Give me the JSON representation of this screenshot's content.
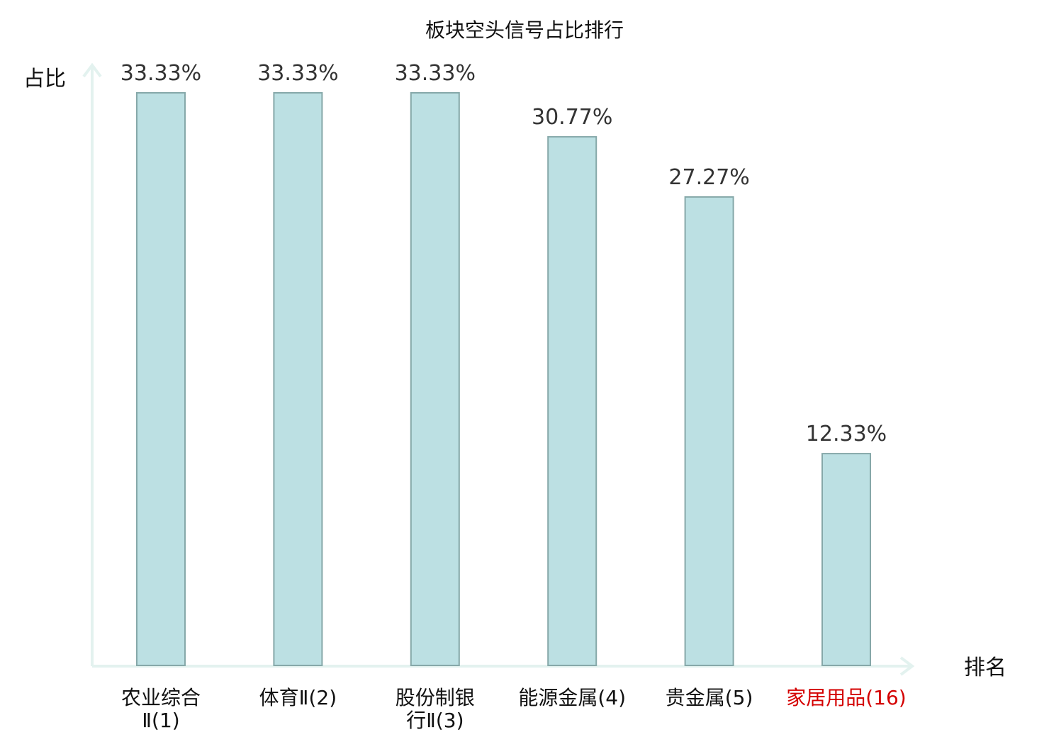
{
  "chart_data": {
    "type": "bar",
    "title": "板块空头信号占比排行",
    "ylabel": "占比",
    "xlabel": "排名",
    "categories": [
      [
        "农业综合",
        "Ⅱ(1)"
      ],
      [
        "体育Ⅱ(2)"
      ],
      [
        "股份制银",
        "行Ⅱ(3)"
      ],
      [
        "能源金属(4)"
      ],
      [
        "贵金属(5)"
      ],
      [
        "家居用品(16)"
      ]
    ],
    "values": [
      33.33,
      33.33,
      33.33,
      30.77,
      27.27,
      12.33
    ],
    "value_labels": [
      "33.33%",
      "33.33%",
      "33.33%",
      "30.77%",
      "27.27%",
      "12.33%"
    ],
    "highlight_index": 5,
    "ylim": [
      0,
      33.33
    ],
    "grid": false,
    "colors": {
      "bar_fill": "#bce0e3",
      "bar_stroke": "#86a8a9",
      "axis": "#e3f2ef",
      "highlight": "#d40000"
    }
  }
}
